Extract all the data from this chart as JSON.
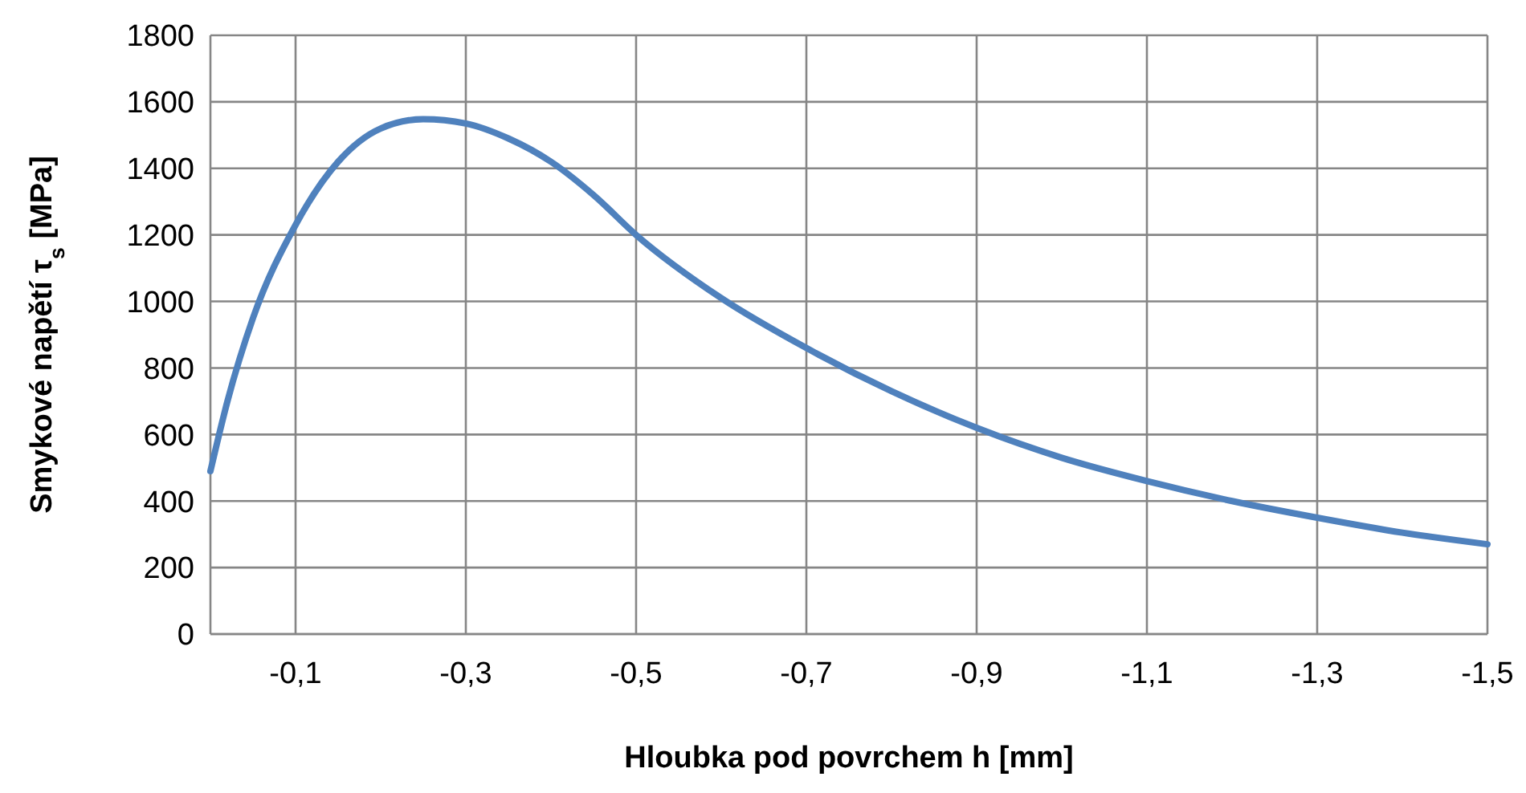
{
  "chart_data": {
    "type": "line",
    "xlabel": "Hloubka pod povrchem h [mm]",
    "ylabel": "Smykové napětí τ$_{s}$ [MPa]",
    "x": [
      0,
      -0.02,
      -0.05,
      -0.1,
      -0.15,
      -0.2,
      -0.25,
      -0.3,
      -0.35,
      -0.4,
      -0.45,
      -0.5,
      -0.6,
      -0.7,
      -0.8,
      -0.9,
      -1.0,
      -1.1,
      -1.2,
      -1.3,
      -1.4,
      -1.5
    ],
    "series": [
      {
        "color": "#4f81bd",
        "values": [
          490,
          700,
          950,
          1230,
          1420,
          1520,
          1548,
          1535,
          1490,
          1420,
          1320,
          1200,
          1010,
          860,
          730,
          620,
          530,
          460,
          400,
          350,
          305,
          270
        ]
      }
    ],
    "xlim": [
      0,
      -1.5
    ],
    "xticks": [
      {
        "value": -0.1,
        "label": "-0,1"
      },
      {
        "value": -0.3,
        "label": "-0,3"
      },
      {
        "value": -0.5,
        "label": "-0,5"
      },
      {
        "value": -0.7,
        "label": "-0,7"
      },
      {
        "value": -0.9,
        "label": "-0,9"
      },
      {
        "value": -1.1,
        "label": "-1,1"
      },
      {
        "value": -1.3,
        "label": "-1,3"
      },
      {
        "value": -1.5,
        "label": "-1,5"
      }
    ],
    "ylim": [
      0,
      1800
    ],
    "yticks": [
      0,
      200,
      400,
      600,
      800,
      1000,
      1200,
      1400,
      1600,
      1800
    ],
    "grid": true,
    "marker": "none",
    "line_style": "solid"
  }
}
